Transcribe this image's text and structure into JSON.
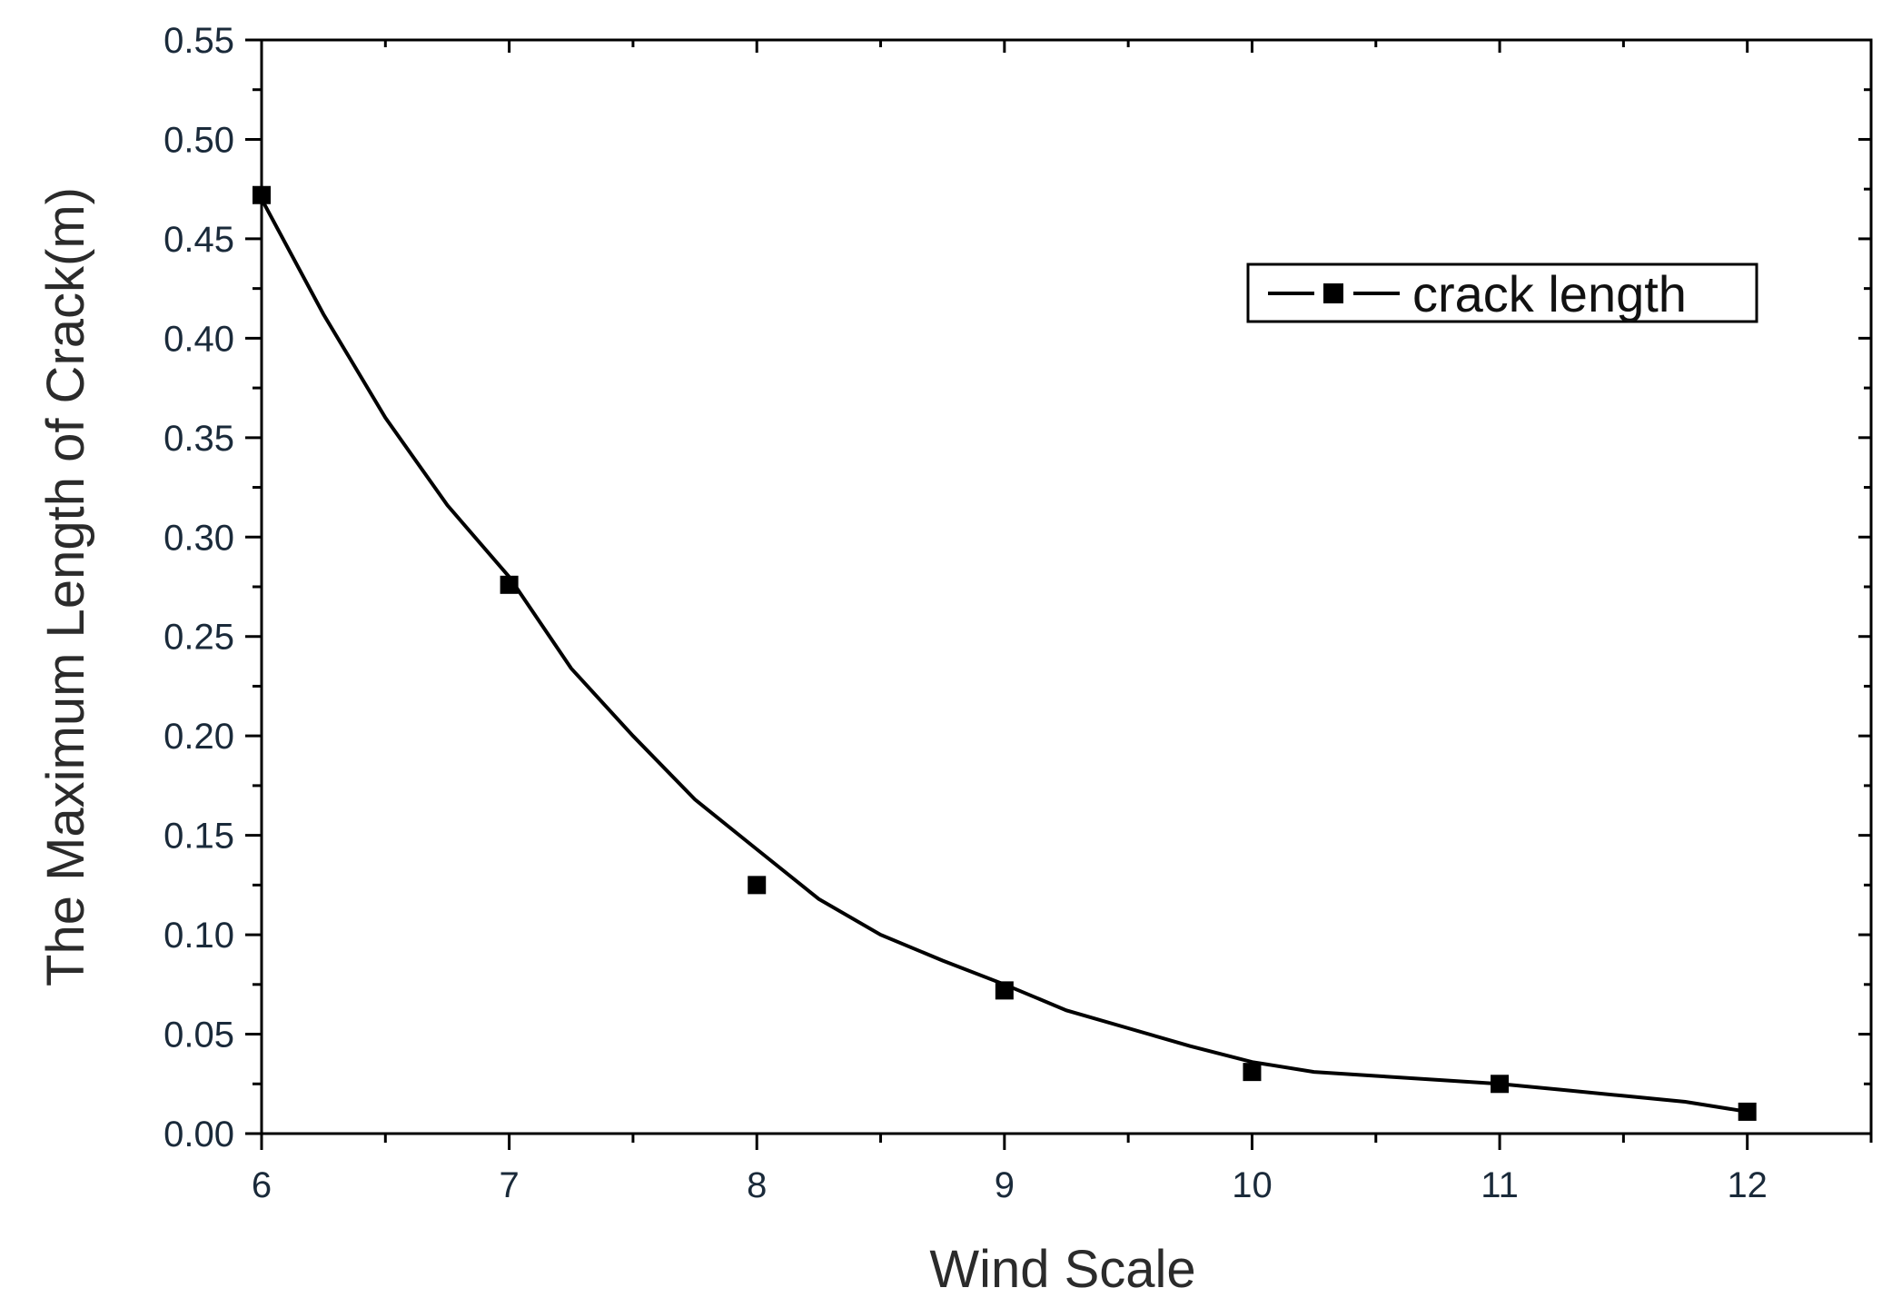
{
  "chart_data": {
    "type": "line",
    "xlabel": "Wind Scale",
    "ylabel": "The Maximum Length of Crack(m)",
    "xlim": [
      6,
      12.5
    ],
    "ylim": [
      0,
      0.55
    ],
    "x_ticks": [
      "6",
      "7",
      "8",
      "9",
      "10",
      "11",
      "12"
    ],
    "y_ticks": [
      "0.00",
      "0.05",
      "0.10",
      "0.15",
      "0.20",
      "0.25",
      "0.30",
      "0.35",
      "0.40",
      "0.45",
      "0.50",
      "0.55"
    ],
    "series": [
      {
        "name": "crack length",
        "marker": "square",
        "x": [
          6,
          7,
          8,
          9,
          10,
          11,
          12
        ],
        "y": [
          0.472,
          0.276,
          0.125,
          0.072,
          0.031,
          0.025,
          0.011
        ]
      }
    ],
    "fit_curve": {
      "x": [
        6,
        6.25,
        6.5,
        6.75,
        7,
        7.25,
        7.5,
        7.75,
        8,
        8.25,
        8.5,
        8.75,
        9,
        9.25,
        9.5,
        9.75,
        10,
        10.25,
        10.5,
        10.75,
        11,
        11.25,
        11.5,
        11.75,
        12
      ],
      "y": [
        0.47,
        0.412,
        0.36,
        0.316,
        0.28,
        0.234,
        0.2,
        0.168,
        0.143,
        0.118,
        0.1,
        0.087,
        0.075,
        0.062,
        0.053,
        0.044,
        0.036,
        0.031,
        0.029,
        0.027,
        0.025,
        0.022,
        0.019,
        0.016,
        0.011
      ]
    },
    "legend_position": "top-right",
    "grid": false,
    "colors": {
      "line": "#000000",
      "marker": "#000000",
      "axis": "#000000"
    }
  }
}
